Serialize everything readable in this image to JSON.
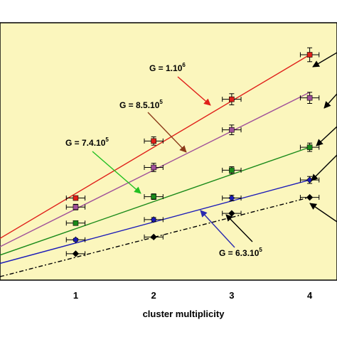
{
  "chart_data": {
    "type": "line",
    "xlabel": "cluster multiplicity",
    "x_ticks": [
      "1",
      "2",
      "3",
      "4"
    ],
    "xlim": [
      0.03,
      4.35
    ],
    "ylim": [
      0,
      3.7
    ],
    "grid": false,
    "background": "#fbf6bd",
    "series": [
      {
        "color": "#e0201a",
        "marker": "square",
        "x": [
          1,
          2,
          3,
          4
        ],
        "y": [
          1.18,
          2.0,
          2.6,
          3.24
        ],
        "yerr": [
          0.03,
          0.06,
          0.08,
          0.1
        ],
        "fit": [
          [
            0.03,
            0.6
          ],
          [
            4,
            3.24
          ]
        ],
        "line_style": "solid"
      },
      {
        "color": "#a0509a",
        "marker": "square",
        "x": [
          1,
          2,
          3,
          4
        ],
        "y": [
          1.05,
          1.62,
          2.16,
          2.62
        ],
        "yerr": [
          0.04,
          0.06,
          0.07,
          0.08
        ],
        "fit": [
          [
            0.03,
            0.48
          ],
          [
            4,
            2.7
          ]
        ],
        "line_style": "solid"
      },
      {
        "color": "#1a8a1a",
        "marker": "square",
        "x": [
          1,
          2,
          3,
          4
        ],
        "y": [
          0.82,
          1.2,
          1.58,
          1.91
        ],
        "yerr": [
          0.03,
          0.04,
          0.05,
          0.06
        ],
        "fit": [
          [
            0.03,
            0.36
          ],
          [
            4,
            1.91
          ]
        ],
        "line_style": "solid"
      },
      {
        "color": "#1a1ab8",
        "marker": "diamond",
        "x": [
          1,
          2,
          3,
          4
        ],
        "y": [
          0.58,
          0.87,
          1.18,
          1.44
        ],
        "yerr": [
          0.02,
          0.03,
          0.04,
          0.05
        ],
        "fit": [
          [
            0.03,
            0.24
          ],
          [
            4,
            1.44
          ]
        ],
        "line_style": "solid"
      },
      {
        "color": "#000000",
        "marker": "diamond",
        "x": [
          1,
          2,
          3,
          4
        ],
        "y": [
          0.38,
          0.62,
          0.96,
          1.19
        ],
        "yerr": [
          0.0,
          0.0,
          0.0,
          0.0
        ],
        "fit": [
          [
            0.03,
            0.05
          ],
          [
            4,
            1.19
          ]
        ],
        "line_style": "dash-dot"
      }
    ],
    "annotations": [
      {
        "id": "g-red",
        "base": "G = 1.10",
        "exp": "6",
        "color": "#e0201a"
      },
      {
        "id": "g-purple",
        "base": "G = 8.5.10",
        "exp": "5",
        "color": "#8b3a1a"
      },
      {
        "id": "g-green",
        "base": "G = 7.4.10",
        "exp": "5",
        "color": "#22c022"
      },
      {
        "id": "g-blue",
        "base": "G = 6.3.10",
        "exp": "5",
        "color": "#2a2ab0"
      }
    ]
  }
}
